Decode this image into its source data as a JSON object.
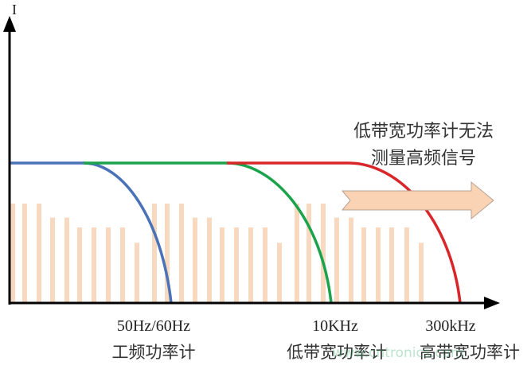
{
  "diagram": {
    "y_axis_label": "I",
    "x_ticks": [
      "50Hz/60Hz",
      "10KHz",
      "300kHz"
    ],
    "meter_labels": [
      "工频功率计",
      "低带宽功率计",
      "高带宽功率计"
    ],
    "annotation": [
      "低带宽功率计无法",
      "测量高频信号"
    ],
    "watermark": "www.cntronics.com",
    "spectrum_bars_relative": [
      0.71,
      0.71,
      0.71,
      0.61,
      0.61,
      0.54,
      0.54,
      0.54,
      0.54,
      0.43,
      0.71,
      0.71,
      0.71,
      0.61,
      0.61,
      0.54,
      0.54,
      0.54,
      0.54,
      0.43,
      0.71,
      0.71,
      0.71,
      0.61,
      0.61,
      0.54,
      0.54,
      0.54,
      0.54,
      0.43
    ],
    "curves": [
      {
        "meter": "工频功率计",
        "color": "#4a72b8"
      },
      {
        "meter": "低带宽功率计",
        "color": "#1aa34a"
      },
      {
        "meter": "高带宽功率计",
        "color": "#d9262a"
      }
    ],
    "bar_color": "#f8d9c0",
    "arrow_color": "#f9d3b4"
  }
}
